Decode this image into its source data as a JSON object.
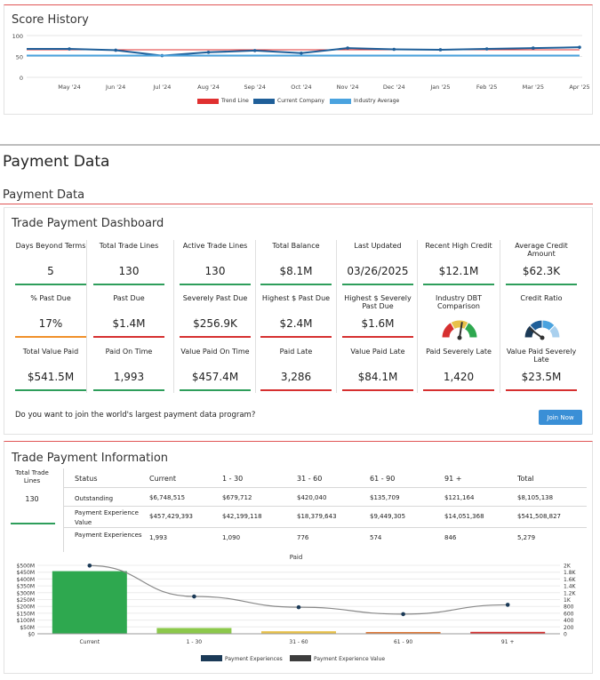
{
  "score_history": {
    "title": "Score History",
    "chart_data": {
      "type": "line",
      "x": [
        "May '24",
        "Jun '24",
        "Jul '24",
        "Aug '24",
        "Sep '24",
        "Oct '24",
        "Nov '24",
        "Dec '24",
        "Jan '25",
        "Feb '25",
        "Mar '25",
        "Apr '25"
      ],
      "ylim": [
        0,
        100
      ],
      "yticks": [
        "100",
        "50",
        "0"
      ],
      "series": [
        {
          "name": "Trend Line",
          "color": "#e03030",
          "values": [
            66,
            66,
            66,
            66,
            66,
            66,
            66,
            66,
            66,
            66,
            66,
            66
          ]
        },
        {
          "name": "Current Company",
          "color": "#1f5f99",
          "values": [
            68,
            65,
            52,
            60,
            64,
            58,
            70,
            67,
            66,
            68,
            70,
            72
          ]
        },
        {
          "name": "Industry Average",
          "color": "#4aa3df",
          "values": [
            52,
            52,
            52,
            52,
            52,
            52,
            52,
            52,
            52,
            52,
            52,
            52
          ]
        }
      ]
    }
  },
  "section_title": "Payment Data",
  "sub_title": "Payment Data",
  "dashboard": {
    "title": "Trade Payment Dashboard",
    "row1": [
      {
        "label": "Days Beyond Terms",
        "value": "5",
        "bar": "#2e9e5b"
      },
      {
        "label": "Total Trade Lines",
        "value": "130",
        "bar": "#2e9e5b"
      },
      {
        "label": "Active Trade Lines",
        "value": "130",
        "bar": "#2e9e5b"
      },
      {
        "label": "Total Balance",
        "value": "$8.1M",
        "bar": "#2e9e5b"
      },
      {
        "label": "Last Updated",
        "value": "03/26/2025",
        "bar": "#2e9e5b"
      },
      {
        "label": "Recent High Credit",
        "value": "$12.1M",
        "bar": "#2e9e5b"
      },
      {
        "label": "Average Credit Amount",
        "value": "$62.3K",
        "bar": "#2e9e5b"
      }
    ],
    "row2": [
      {
        "label": "% Past Due",
        "value": "17%",
        "bar": "#f0902a"
      },
      {
        "label": "Past Due",
        "value": "$1.4M",
        "bar": "#d63030"
      },
      {
        "label": "Severely Past Due",
        "value": "$256.9K",
        "bar": "#d63030"
      },
      {
        "label": "Highest $ Past Due",
        "value": "$2.4M",
        "bar": "#d63030"
      },
      {
        "label": "Highest $ Severely Past Due",
        "value": "$1.6M",
        "bar": "#d63030"
      }
    ],
    "gauges": [
      {
        "label": "Industry DBT Comparison"
      },
      {
        "label": "Credit Ratio"
      }
    ],
    "row3": [
      {
        "label": "Total Value Paid",
        "value": "$541.5M",
        "bar": "#2e9e5b"
      },
      {
        "label": "Paid On Time",
        "value": "1,993",
        "bar": "#2e9e5b"
      },
      {
        "label": "Value Paid On Time",
        "value": "$457.4M",
        "bar": "#2e9e5b"
      },
      {
        "label": "Paid Late",
        "value": "3,286",
        "bar": "#d63030"
      },
      {
        "label": "Value Paid Late",
        "value": "$84.1M",
        "bar": "#d63030"
      },
      {
        "label": "Paid Severely Late",
        "value": "1,420",
        "bar": "#d63030"
      },
      {
        "label": "Value Paid Severely Late",
        "value": "$23.5M",
        "bar": "#d63030"
      }
    ],
    "join_text": "Do you want to join the world's largest payment data program?",
    "join_button": "Join Now"
  },
  "trade_info": {
    "title": "Trade Payment Information",
    "total_label": "Total Trade Lines",
    "total_value": "130",
    "columns": [
      "Status",
      "Current",
      "1 - 30",
      "31 - 60",
      "61 - 90",
      "91 +",
      "Total"
    ],
    "rows": [
      {
        "status": "Outstanding",
        "cells": [
          "$6,748,515",
          "$679,712",
          "$420,040",
          "$135,709",
          "$121,164",
          "$8,105,138"
        ]
      },
      {
        "status": "Payment Experience Value",
        "cells": [
          "$457,429,393",
          "$42,199,118",
          "$18,379,643",
          "$9,449,305",
          "$14,051,368",
          "$541,508,827"
        ]
      },
      {
        "status": "Payment Experiences",
        "cells": [
          "1,993",
          "1,090",
          "776",
          "574",
          "846",
          "5,279"
        ]
      }
    ],
    "chart_data": {
      "type": "bar",
      "title": "Paid",
      "categories": [
        "Current",
        "1 - 30",
        "31 - 60",
        "61 - 90",
        "91 +"
      ],
      "series": [
        {
          "name": "Payment Experience Value",
          "axis": "left",
          "values": [
            457.4,
            42.2,
            18.4,
            9.4,
            14.1
          ],
          "colors": [
            "#2ea84f",
            "#8cc84b",
            "#e8c14a",
            "#e07a3a",
            "#d63030"
          ]
        },
        {
          "name": "Payment Experiences",
          "axis": "right",
          "values": [
            1993,
            1090,
            776,
            574,
            846
          ]
        }
      ],
      "left_ticks": [
        "$500M",
        "$450M",
        "$400M",
        "$350M",
        "$300M",
        "$250M",
        "$200M",
        "$150M",
        "$100M",
        "$50M",
        "$0"
      ],
      "right_ticks": [
        "2K",
        "1.8K",
        "1.6K",
        "1.4K",
        "1.2K",
        "1K",
        "800",
        "600",
        "400",
        "200",
        "0"
      ],
      "ylim_left": [
        0,
        500
      ],
      "ylim_right": [
        0,
        2000
      ],
      "legend": [
        {
          "name": "Payment Experiences",
          "color": "#1b3a57"
        },
        {
          "name": "Payment Experience Value",
          "color": "#3d3d3d"
        }
      ]
    }
  }
}
